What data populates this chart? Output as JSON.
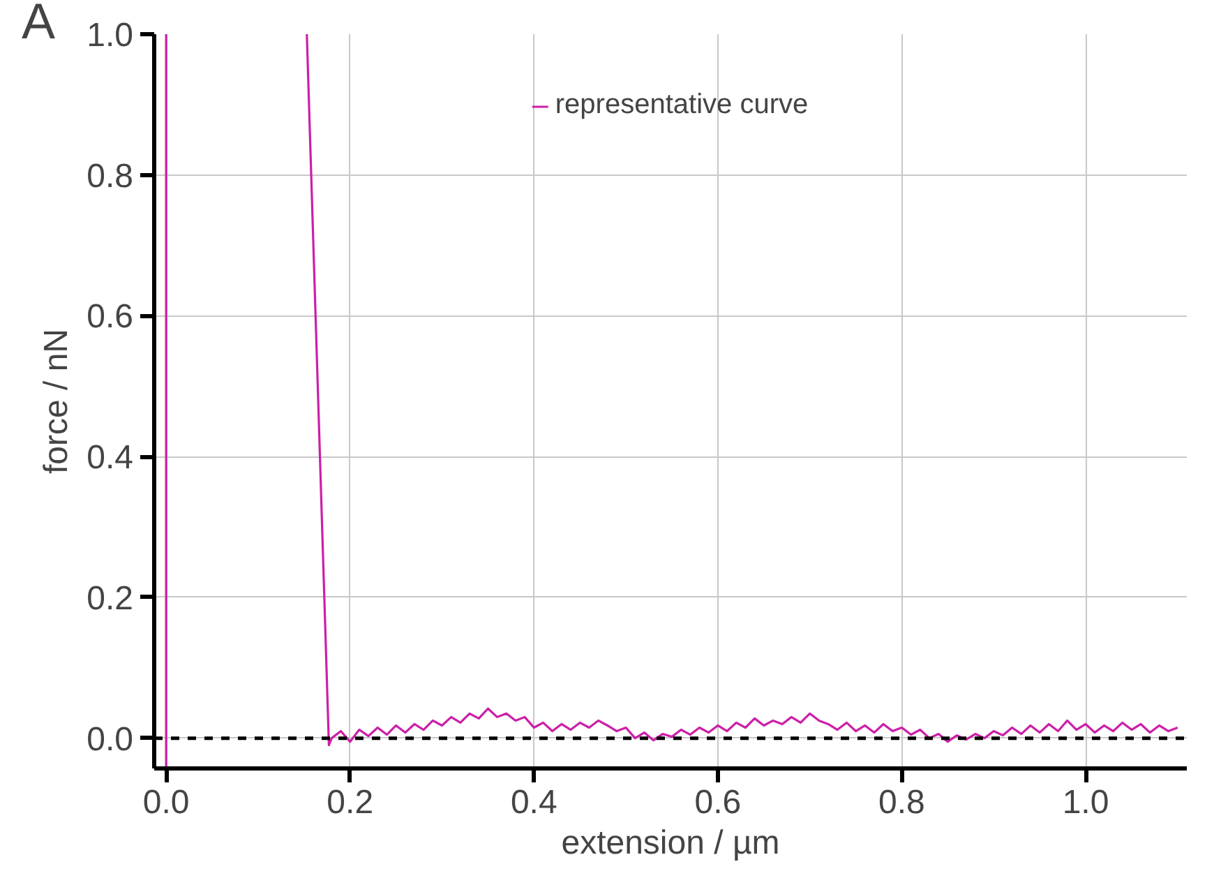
{
  "chart_data": {
    "type": "line",
    "xlabel": "extension / µm",
    "ylabel": "force / nN",
    "annotations": [
      "A"
    ],
    "xlim": [
      -0.013,
      1.11
    ],
    "ylim": [
      -0.043,
      1.0
    ],
    "xticks": [
      {
        "value": 0,
        "label": "0.0"
      },
      0.2,
      0.4,
      0.6,
      0.8,
      {
        "value": 1,
        "label": "1.0"
      }
    ],
    "yticks": [
      {
        "value": 0,
        "label": "0.0"
      },
      0.2,
      0.4,
      0.6,
      0.8,
      {
        "value": 1,
        "label": "1.0"
      }
    ],
    "grid": true,
    "legend": "top",
    "line_style": "solid",
    "marker": "none",
    "ref_lines": [
      {
        "axis": "y",
        "value": 0,
        "color": "#000000",
        "line_style": "dashed"
      }
    ],
    "series": [
      {
        "name": "representative curve",
        "color": "#cc1fa8",
        "x": [
          0,
          0,
          0.1,
          0.153,
          0.177,
          0.18,
          0.19,
          0.2,
          0.21,
          0.22,
          0.23,
          0.24,
          0.25,
          0.26,
          0.27,
          0.28,
          0.29,
          0.3,
          0.31,
          0.32,
          0.33,
          0.34,
          0.35,
          0.36,
          0.37,
          0.38,
          0.39,
          0.4,
          0.41,
          0.42,
          0.43,
          0.44,
          0.45,
          0.46,
          0.47,
          0.48,
          0.49,
          0.5,
          0.51,
          0.52,
          0.53,
          0.54,
          0.55,
          0.56,
          0.57,
          0.58,
          0.59,
          0.6,
          0.61,
          0.62,
          0.63,
          0.64,
          0.65,
          0.66,
          0.67,
          0.68,
          0.69,
          0.7,
          0.71,
          0.72,
          0.73,
          0.74,
          0.75,
          0.76,
          0.77,
          0.78,
          0.79,
          0.8,
          0.81,
          0.82,
          0.83,
          0.84,
          0.85,
          0.86,
          0.87,
          0.88,
          0.89,
          0.9,
          0.91,
          0.92,
          0.93,
          0.94,
          0.95,
          0.96,
          0.97,
          0.98,
          0.99,
          1.0,
          1.01,
          1.02,
          1.03,
          1.04,
          1.05,
          1.06,
          1.07,
          1.08,
          1.09,
          1.1
        ],
        "values": [
          -0.04,
          1.0,
          null,
          1.0,
          -0.01,
          0.0,
          0.01,
          -0.005,
          0.012,
          0.003,
          0.015,
          0.005,
          0.018,
          0.008,
          0.02,
          0.012,
          0.025,
          0.018,
          0.03,
          0.022,
          0.035,
          0.028,
          0.042,
          0.03,
          0.035,
          0.025,
          0.03,
          0.015,
          0.022,
          0.01,
          0.02,
          0.012,
          0.022,
          0.015,
          0.025,
          0.018,
          0.01,
          0.015,
          0.0,
          0.008,
          -0.003,
          0.006,
          0.002,
          0.012,
          0.005,
          0.015,
          0.008,
          0.018,
          0.01,
          0.022,
          0.015,
          0.028,
          0.018,
          0.025,
          0.02,
          0.03,
          0.022,
          0.035,
          0.025,
          0.02,
          0.012,
          0.022,
          0.01,
          0.018,
          0.008,
          0.02,
          0.01,
          0.015,
          0.005,
          0.012,
          0.0,
          0.006,
          -0.005,
          0.004,
          -0.002,
          0.006,
          0.0,
          0.01,
          0.004,
          0.015,
          0.006,
          0.018,
          0.008,
          0.02,
          0.01,
          0.025,
          0.012,
          0.02,
          0.008,
          0.018,
          0.01,
          0.022,
          0.012,
          0.02,
          0.008,
          0.018,
          0.01,
          0.015
        ]
      }
    ]
  }
}
